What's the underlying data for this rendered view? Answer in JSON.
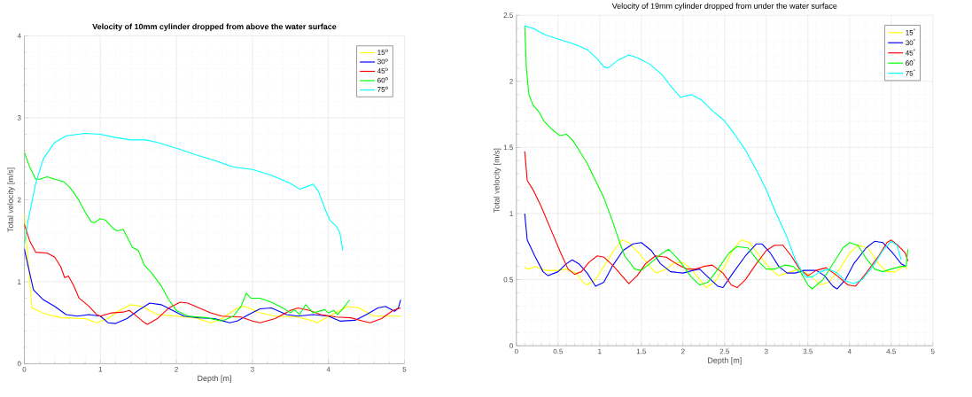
{
  "chart_data": [
    {
      "type": "line",
      "title": "Velocity of 10mm cylinder dropped from above the water surface",
      "xlabel": "Depth [m]",
      "ylabel": "Total velocity [m/s]",
      "xlim": [
        0,
        5
      ],
      "ylim": [
        0,
        4
      ],
      "xticks": [
        0,
        1,
        2,
        3,
        4,
        5
      ],
      "yticks": [
        0,
        1,
        2,
        3,
        4
      ],
      "grid": true,
      "legend": "top right",
      "series": [
        {
          "name": "15$^{o}$",
          "color": "#ffff00",
          "x": [
            0,
            0.1,
            0.3,
            0.5,
            0.8,
            0.95,
            1.1,
            1.25,
            1.4,
            1.55,
            1.75,
            2.0,
            2.25,
            2.45,
            2.6,
            2.8,
            2.9,
            3.1,
            3.3,
            3.6,
            3.8,
            3.85,
            4.05,
            4.25,
            4.4,
            4.6,
            4.8,
            4.95
          ],
          "values": [
            1.82,
            0.68,
            0.6,
            0.56,
            0.55,
            0.5,
            0.55,
            0.65,
            0.72,
            0.7,
            0.6,
            0.58,
            0.56,
            0.5,
            0.55,
            0.68,
            0.7,
            0.62,
            0.58,
            0.57,
            0.52,
            0.5,
            0.6,
            0.7,
            0.68,
            0.58,
            0.58,
            0.58
          ]
        },
        {
          "name": "30$^{o}$",
          "color": "#0000ff",
          "x": [
            0,
            0.12,
            0.25,
            0.4,
            0.55,
            0.7,
            0.85,
            1.0,
            1.1,
            1.2,
            1.35,
            1.5,
            1.65,
            1.8,
            1.95,
            2.1,
            2.3,
            2.5,
            2.7,
            2.8,
            2.95,
            3.1,
            3.25,
            3.45,
            3.6,
            3.8,
            4.0,
            4.15,
            4.35,
            4.5,
            4.65,
            4.75,
            4.87,
            4.92,
            4.95
          ],
          "values": [
            1.4,
            0.9,
            0.78,
            0.7,
            0.6,
            0.58,
            0.6,
            0.58,
            0.5,
            0.49,
            0.55,
            0.65,
            0.74,
            0.72,
            0.65,
            0.58,
            0.56,
            0.55,
            0.5,
            0.52,
            0.6,
            0.67,
            0.68,
            0.6,
            0.58,
            0.6,
            0.58,
            0.52,
            0.53,
            0.6,
            0.68,
            0.7,
            0.64,
            0.68,
            0.78
          ]
        },
        {
          "name": "45$^{o}$",
          "color": "#ff0000",
          "x": [
            0,
            0.07,
            0.15,
            0.3,
            0.4,
            0.48,
            0.53,
            0.58,
            0.65,
            0.72,
            0.85,
            0.95,
            1.0,
            1.15,
            1.3,
            1.38,
            1.45,
            1.58,
            1.62,
            1.75,
            1.9,
            2.05,
            2.15,
            2.3,
            2.45,
            2.6,
            2.85,
            3.0,
            3.1,
            3.3,
            3.5,
            3.6,
            3.75,
            3.9,
            4.1,
            4.3,
            4.45,
            4.55,
            4.7,
            4.85,
            4.95
          ],
          "values": [
            1.7,
            1.5,
            1.36,
            1.35,
            1.3,
            1.18,
            1.05,
            1.07,
            0.95,
            0.8,
            0.7,
            0.6,
            0.58,
            0.62,
            0.63,
            0.65,
            0.6,
            0.5,
            0.48,
            0.55,
            0.68,
            0.75,
            0.74,
            0.68,
            0.62,
            0.58,
            0.57,
            0.52,
            0.5,
            0.55,
            0.65,
            0.68,
            0.65,
            0.6,
            0.57,
            0.56,
            0.52,
            0.5,
            0.55,
            0.65,
            0.68
          ]
        },
        {
          "name": "60$^{o}$",
          "color": "#00ff00",
          "x": [
            0,
            0.07,
            0.15,
            0.2,
            0.3,
            0.4,
            0.52,
            0.6,
            0.7,
            0.8,
            0.88,
            0.92,
            1.0,
            1.07,
            1.17,
            1.22,
            1.3,
            1.35,
            1.42,
            1.5,
            1.58,
            1.68,
            1.8,
            1.9,
            2.0,
            2.15,
            2.4,
            2.6,
            2.75,
            2.85,
            2.92,
            2.98,
            3.1,
            3.25,
            3.4,
            3.5,
            3.55,
            3.62,
            3.7,
            3.8,
            3.95,
            4.0,
            4.07,
            4.12,
            4.18,
            4.28
          ],
          "values": [
            2.58,
            2.4,
            2.25,
            2.25,
            2.28,
            2.25,
            2.22,
            2.15,
            2.02,
            1.85,
            1.73,
            1.72,
            1.77,
            1.75,
            1.65,
            1.62,
            1.64,
            1.55,
            1.42,
            1.38,
            1.2,
            1.1,
            0.95,
            0.78,
            0.65,
            0.58,
            0.56,
            0.52,
            0.58,
            0.7,
            0.86,
            0.8,
            0.8,
            0.75,
            0.68,
            0.62,
            0.66,
            0.6,
            0.72,
            0.62,
            0.66,
            0.62,
            0.65,
            0.6,
            0.66,
            0.78
          ]
        },
        {
          "name": "75$^{o}$",
          "color": "#00ffff",
          "x": [
            0,
            0.05,
            0.15,
            0.25,
            0.4,
            0.55,
            0.8,
            1.0,
            1.2,
            1.4,
            1.6,
            1.75,
            2.0,
            2.25,
            2.5,
            2.75,
            3.0,
            3.25,
            3.5,
            3.62,
            3.72,
            3.8,
            3.87,
            3.95,
            4.02,
            4.1,
            4.15,
            4.19
          ],
          "values": [
            1.45,
            1.75,
            2.2,
            2.5,
            2.7,
            2.78,
            2.81,
            2.8,
            2.76,
            2.73,
            2.73,
            2.7,
            2.63,
            2.55,
            2.48,
            2.4,
            2.37,
            2.3,
            2.2,
            2.13,
            2.16,
            2.19,
            2.1,
            1.9,
            1.75,
            1.68,
            1.6,
            1.38
          ]
        }
      ]
    },
    {
      "type": "line",
      "title": "Velocity of 19mm cylinder dropped from under the water surface",
      "xlabel": "Depth [m]",
      "ylabel": "Total velocity [m/s]",
      "xlim": [
        0,
        5
      ],
      "ylim": [
        0,
        2.5
      ],
      "xticks": [
        0,
        0.5,
        1,
        1.5,
        2,
        2.5,
        3,
        3.5,
        4,
        4.5,
        5
      ],
      "yticks": [
        0,
        0.5,
        1,
        1.5,
        2,
        2.5
      ],
      "grid": true,
      "legend": "top right",
      "series": [
        {
          "name": "15$^{°}$",
          "color": "#ffff00",
          "x": [
            0.1,
            0.15,
            0.22,
            0.35,
            0.5,
            0.6,
            0.72,
            0.8,
            0.85,
            0.95,
            1.05,
            1.17,
            1.27,
            1.35,
            1.47,
            1.6,
            1.68,
            1.8,
            1.9,
            2.0,
            2.1,
            2.2,
            2.28,
            2.38,
            2.5,
            2.6,
            2.7,
            2.8,
            2.92,
            3.05,
            3.15,
            3.3,
            3.4,
            3.55,
            3.65,
            3.75,
            3.88,
            4.0,
            4.1,
            4.22,
            4.35,
            4.45,
            4.55,
            4.65,
            4.7
          ],
          "values": [
            0.59,
            0.58,
            0.6,
            0.57,
            0.57,
            0.58,
            0.55,
            0.48,
            0.46,
            0.5,
            0.6,
            0.72,
            0.8,
            0.78,
            0.7,
            0.6,
            0.55,
            0.58,
            0.63,
            0.63,
            0.58,
            0.5,
            0.44,
            0.48,
            0.6,
            0.73,
            0.8,
            0.78,
            0.68,
            0.58,
            0.53,
            0.56,
            0.58,
            0.52,
            0.46,
            0.48,
            0.58,
            0.7,
            0.76,
            0.74,
            0.62,
            0.56,
            0.56,
            0.6,
            0.58
          ]
        },
        {
          "name": "30$^{°}$",
          "color": "#0000ff",
          "x": [
            0.1,
            0.13,
            0.22,
            0.32,
            0.38,
            0.5,
            0.6,
            0.67,
            0.75,
            0.85,
            0.95,
            1.05,
            1.15,
            1.28,
            1.4,
            1.5,
            1.62,
            1.73,
            1.85,
            2.0,
            2.12,
            2.2,
            2.3,
            2.42,
            2.48,
            2.6,
            2.75,
            2.88,
            2.95,
            3.05,
            3.15,
            3.25,
            3.35,
            3.45,
            3.6,
            3.7,
            3.8,
            3.85,
            3.95,
            4.05,
            4.2,
            4.3,
            4.4,
            4.52,
            4.62,
            4.68
          ],
          "values": [
            1.0,
            0.8,
            0.68,
            0.56,
            0.53,
            0.56,
            0.62,
            0.65,
            0.62,
            0.55,
            0.45,
            0.48,
            0.6,
            0.72,
            0.77,
            0.78,
            0.72,
            0.62,
            0.56,
            0.55,
            0.57,
            0.58,
            0.52,
            0.45,
            0.44,
            0.55,
            0.68,
            0.77,
            0.77,
            0.7,
            0.6,
            0.55,
            0.55,
            0.57,
            0.57,
            0.53,
            0.45,
            0.43,
            0.5,
            0.62,
            0.74,
            0.79,
            0.78,
            0.7,
            0.62,
            0.6
          ]
        },
        {
          "name": "45$^{°}$",
          "color": "#ff0000",
          "x": [
            0.1,
            0.13,
            0.2,
            0.3,
            0.4,
            0.52,
            0.62,
            0.7,
            0.78,
            0.87,
            0.97,
            1.05,
            1.17,
            1.28,
            1.35,
            1.45,
            1.55,
            1.67,
            1.8,
            1.92,
            2.05,
            2.15,
            2.25,
            2.35,
            2.48,
            2.58,
            2.65,
            2.75,
            2.88,
            3.0,
            3.1,
            3.2,
            3.3,
            3.4,
            3.5,
            3.6,
            3.72,
            3.85,
            3.98,
            4.07,
            4.2,
            4.35,
            4.45,
            4.5,
            4.58,
            4.67,
            4.7
          ],
          "values": [
            1.47,
            1.25,
            1.18,
            1.05,
            0.9,
            0.72,
            0.58,
            0.54,
            0.56,
            0.63,
            0.68,
            0.67,
            0.6,
            0.52,
            0.47,
            0.53,
            0.62,
            0.68,
            0.67,
            0.62,
            0.58,
            0.58,
            0.6,
            0.61,
            0.55,
            0.46,
            0.44,
            0.5,
            0.62,
            0.72,
            0.76,
            0.76,
            0.68,
            0.58,
            0.53,
            0.57,
            0.59,
            0.53,
            0.46,
            0.45,
            0.55,
            0.68,
            0.78,
            0.8,
            0.76,
            0.7,
            0.64
          ]
        },
        {
          "name": "60$^{°}$",
          "color": "#00ff00",
          "x": [
            0.1,
            0.12,
            0.15,
            0.2,
            0.27,
            0.33,
            0.42,
            0.52,
            0.6,
            0.68,
            0.78,
            0.85,
            0.95,
            1.05,
            1.15,
            1.23,
            1.3,
            1.42,
            1.5,
            1.6,
            1.75,
            1.83,
            1.95,
            2.1,
            2.2,
            2.3,
            2.42,
            2.55,
            2.65,
            2.78,
            2.9,
            3.0,
            3.1,
            3.22,
            3.32,
            3.42,
            3.5,
            3.55,
            3.68,
            3.8,
            3.92,
            4.0,
            4.1,
            4.2,
            4.3,
            4.4,
            4.5,
            4.62,
            4.68,
            4.7
          ],
          "values": [
            2.42,
            2.1,
            1.9,
            1.82,
            1.77,
            1.7,
            1.64,
            1.59,
            1.6,
            1.55,
            1.45,
            1.38,
            1.25,
            1.12,
            0.95,
            0.8,
            0.68,
            0.58,
            0.57,
            0.62,
            0.7,
            0.73,
            0.65,
            0.52,
            0.46,
            0.48,
            0.58,
            0.7,
            0.75,
            0.74,
            0.64,
            0.58,
            0.58,
            0.61,
            0.6,
            0.55,
            0.46,
            0.43,
            0.5,
            0.62,
            0.74,
            0.78,
            0.76,
            0.66,
            0.58,
            0.56,
            0.58,
            0.6,
            0.6,
            0.73
          ]
        },
        {
          "name": "75$^{°}$",
          "color": "#00ffff",
          "x": [
            0.1,
            0.2,
            0.35,
            0.55,
            0.7,
            0.85,
            0.97,
            1.05,
            1.1,
            1.22,
            1.35,
            1.45,
            1.6,
            1.75,
            1.87,
            1.97,
            2.1,
            2.22,
            2.35,
            2.5,
            2.62,
            2.75,
            2.88,
            3.0,
            3.12,
            3.25,
            3.35,
            3.42,
            3.48,
            3.55,
            3.65,
            3.75,
            3.85,
            3.95,
            4.05,
            4.15,
            4.28,
            4.4,
            4.5,
            4.57,
            4.62
          ],
          "values": [
            2.42,
            2.4,
            2.35,
            2.31,
            2.28,
            2.24,
            2.17,
            2.11,
            2.1,
            2.16,
            2.2,
            2.18,
            2.13,
            2.05,
            1.95,
            1.88,
            1.9,
            1.86,
            1.78,
            1.7,
            1.6,
            1.48,
            1.33,
            1.18,
            1.0,
            0.82,
            0.65,
            0.57,
            0.52,
            0.52,
            0.56,
            0.58,
            0.55,
            0.49,
            0.47,
            0.5,
            0.6,
            0.72,
            0.79,
            0.76,
            0.65
          ]
        }
      ]
    }
  ]
}
